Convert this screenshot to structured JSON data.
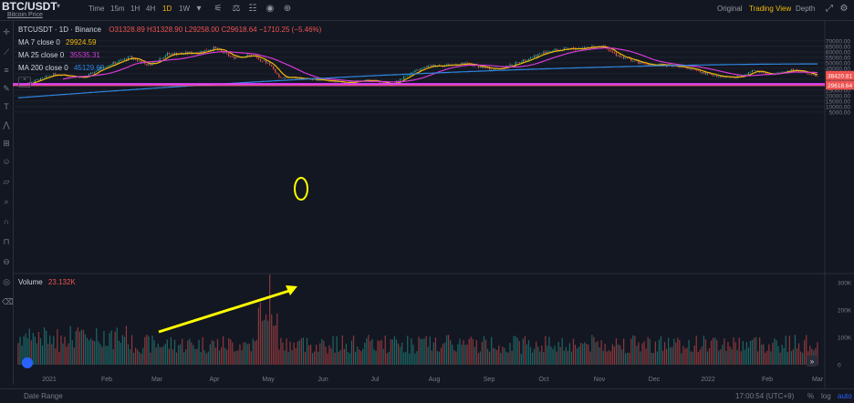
{
  "header": {
    "symbol": "BTC/USDT",
    "symbol_sub": "Bitcoin Price",
    "timeframes": [
      "Time",
      "15m",
      "1H",
      "4H",
      "1D",
      "1W"
    ],
    "active_timeframe": "1D",
    "views": [
      "Original",
      "Trading View",
      "Depth"
    ],
    "active_view": "Trading View"
  },
  "legend": {
    "title": "BTCUSDT · 1D · Binance",
    "ohlc": "O31328.89 H31328.90 L29258.00 C29618.64 −1710.25 (−5.46%)",
    "ma7_label": "MA 7 close 0",
    "ma7_value": "29924.59",
    "ma25_label": "MA 25 close 0",
    "ma25_value": "35535.31",
    "ma200_label": "MA 200 close 0",
    "ma200_value": "45129.69"
  },
  "volume": {
    "label": "Volume",
    "value": "23.132K"
  },
  "price_axis": [
    "70000.00",
    "65000.00",
    "60000.00",
    "55000.00",
    "50000.00",
    "45000.00",
    "40000.00",
    "35000.00",
    "30000.00",
    "25000.00",
    "20000.00",
    "15000.00",
    "10000.00",
    "5000.00"
  ],
  "volume_axis": [
    "300K",
    "200K",
    "100K",
    "0"
  ],
  "price_tags": {
    "upper": "38420.81",
    "lower": "29618.64"
  },
  "time_axis": [
    "2021",
    "Feb",
    "Mar",
    "Apr",
    "May",
    "Jun",
    "Jul",
    "Aug",
    "Sep",
    "Oct",
    "Nov",
    "Dec",
    "2022",
    "Feb",
    "Mar"
  ],
  "footer": {
    "date_range": "Date Range",
    "clock": "17:00:54 (UTC+9)",
    "pct": "%",
    "log": "log",
    "auto": "auto"
  },
  "colors": {
    "up": "#26a69a",
    "down": "#ef5350",
    "ma7": "#f0b90b",
    "ma25": "#d63ad8",
    "ma200": "#2f86e0",
    "annotation": "#ffff00",
    "support_band": "#e040fb",
    "support_line": "#ff5c8a"
  },
  "chart_data": {
    "type": "candlestick",
    "x_range": [
      "2021-01-01",
      "2022-03-10"
    ],
    "y_range": [
      5000,
      75000
    ],
    "price_series_shape": "BTC daily with MA7, MA25, MA200; volume histogram below",
    "annotations": [
      "yellow ellipse near price low in late May 2021",
      "yellow arrow pointing to volume spike in May 2021"
    ],
    "support_band": [
      29000,
      31000
    ]
  }
}
